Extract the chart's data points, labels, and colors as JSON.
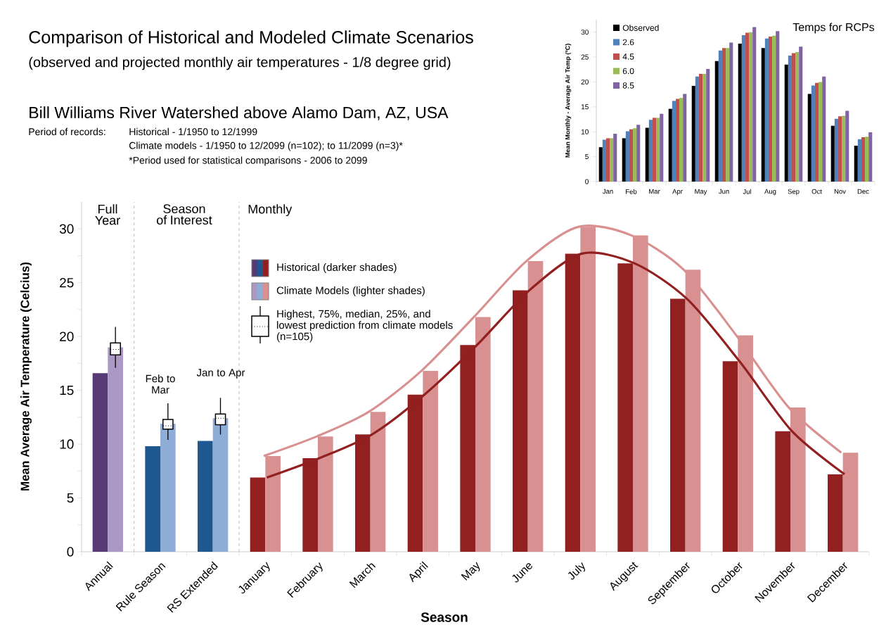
{
  "chart_data": [
    {
      "type": "bar",
      "title": "Comparison of Historical and Modeled Climate Scenarios",
      "subtitle": "(observed and projected monthly air temperatures - 1/8 degree grid)",
      "xlabel": "Season",
      "ylabel": "Mean Average Air Temperature (Celcius)",
      "categories": [
        "Annual",
        "Rule Season",
        "RS Extended",
        "January",
        "February",
        "March",
        "April",
        "May",
        "June",
        "July",
        "August",
        "September",
        "October",
        "November",
        "December"
      ],
      "series": [
        {
          "name": "Historical (darker shades)",
          "colors": [
            "#553a74",
            "#1f5890",
            "#1f5890",
            "#922020",
            "#922020",
            "#922020",
            "#922020",
            "#922020",
            "#922020",
            "#922020",
            "#922020",
            "#922020",
            "#922020",
            "#922020",
            "#922020"
          ],
          "values": [
            16.6,
            9.8,
            10.3,
            6.9,
            8.7,
            10.9,
            14.6,
            19.2,
            24.3,
            27.7,
            26.8,
            23.5,
            17.7,
            11.2,
            7.2
          ]
        },
        {
          "name": "Climate Models (lighter shades)",
          "colors": [
            "#ab98c4",
            "#8eaed8",
            "#8eaed8",
            "#d99090",
            "#d99090",
            "#d99090",
            "#d99090",
            "#d99090",
            "#d99090",
            "#d99090",
            "#d99090",
            "#d99090",
            "#d99090",
            "#d99090",
            "#d99090"
          ],
          "values": [
            19.0,
            11.9,
            12.4,
            8.9,
            10.7,
            13.0,
            16.8,
            21.8,
            27.0,
            30.2,
            29.4,
            26.2,
            20.1,
            13.4,
            9.2
          ]
        },
        {
          "type": "box",
          "name": "Highest, 75%, median, 25%, and lowest prediction from climate models (n=105)",
          "color": "#000000",
          "boxes": [
            {
              "low": 17.1,
              "q1": 18.3,
              "median": 18.8,
              "q3": 19.4,
              "high": 20.9
            },
            {
              "low": 10.4,
              "q1": 11.4,
              "median": 11.7,
              "q3": 12.3,
              "high": 13.8
            },
            {
              "low": 10.9,
              "q1": 11.8,
              "median": 12.4,
              "q3": 12.8,
              "high": 14.3
            },
            null,
            null,
            null,
            null,
            null,
            null,
            null,
            null,
            null,
            null,
            null,
            null
          ]
        },
        {
          "type": "line",
          "color": "#922020",
          "values": [
            null,
            null,
            null,
            6.9,
            8.7,
            10.9,
            14.6,
            19.2,
            24.3,
            27.7,
            26.8,
            23.5,
            17.7,
            11.2,
            7.2
          ]
        },
        {
          "type": "line",
          "color": "#d99090",
          "values": [
            null,
            null,
            null,
            8.9,
            10.7,
            13.0,
            16.8,
            21.8,
            27.0,
            30.2,
            29.4,
            26.2,
            20.1,
            13.4,
            9.2
          ]
        }
      ],
      "ylim": [
        0,
        32.5
      ],
      "yticks": [
        0,
        5,
        10,
        15,
        20,
        25,
        30
      ],
      "legend": "top left",
      "annotations": [
        "Bill Williams River Watershed above Alamo Dam, AZ, USA",
        "Period of records:",
        "Historical - 1/1950 to 12/1999",
        "Climate models - 1/1950 to 12/2099 (n=102); to 11/2099 (n=3)*",
        "*Period used for statistical comparisons - 2006 to 2099",
        "Full Year",
        "Season of Interest",
        "Monthly",
        "Feb to Mar",
        "Jan to Apr"
      ]
    },
    {
      "type": "bar",
      "title": "Temps for RCPs",
      "ylabel": "Mean Monthly - Average Air Temp (ºC)",
      "categories": [
        "Jan",
        "Feb",
        "Mar",
        "Apr",
        "May",
        "Jun",
        "Jul",
        "Aug",
        "Sep",
        "Oct",
        "Nov",
        "Dec"
      ],
      "series": [
        {
          "name": "Observed",
          "color": "#000000",
          "values": [
            6.9,
            8.7,
            10.8,
            14.6,
            19.2,
            24.2,
            27.7,
            26.8,
            23.5,
            17.6,
            11.2,
            7.2
          ]
        },
        {
          "name": "2.6",
          "color": "#4f81bd",
          "values": [
            8.4,
            10.1,
            12.4,
            16.2,
            21.1,
            26.3,
            29.4,
            28.7,
            25.3,
            19.3,
            12.6,
            8.5
          ]
        },
        {
          "name": "4.5",
          "color": "#c0504d",
          "values": [
            8.7,
            10.5,
            12.8,
            16.6,
            21.6,
            26.8,
            29.9,
            29.1,
            25.8,
            19.8,
            13.1,
            8.9
          ]
        },
        {
          "name": "6.0",
          "color": "#9bbb59",
          "values": [
            8.7,
            10.7,
            12.8,
            16.8,
            21.6,
            26.8,
            30.0,
            29.3,
            26.0,
            20.0,
            13.2,
            9.0
          ]
        },
        {
          "name": "8.5",
          "color": "#8064a2",
          "values": [
            9.6,
            11.4,
            13.6,
            17.6,
            22.6,
            27.9,
            31.0,
            30.2,
            27.1,
            21.1,
            14.2,
            9.9
          ]
        }
      ],
      "ylim": [
        0,
        32.5
      ],
      "yticks": [
        0,
        5,
        10,
        15,
        20,
        25,
        30
      ],
      "legend": "top left"
    }
  ]
}
